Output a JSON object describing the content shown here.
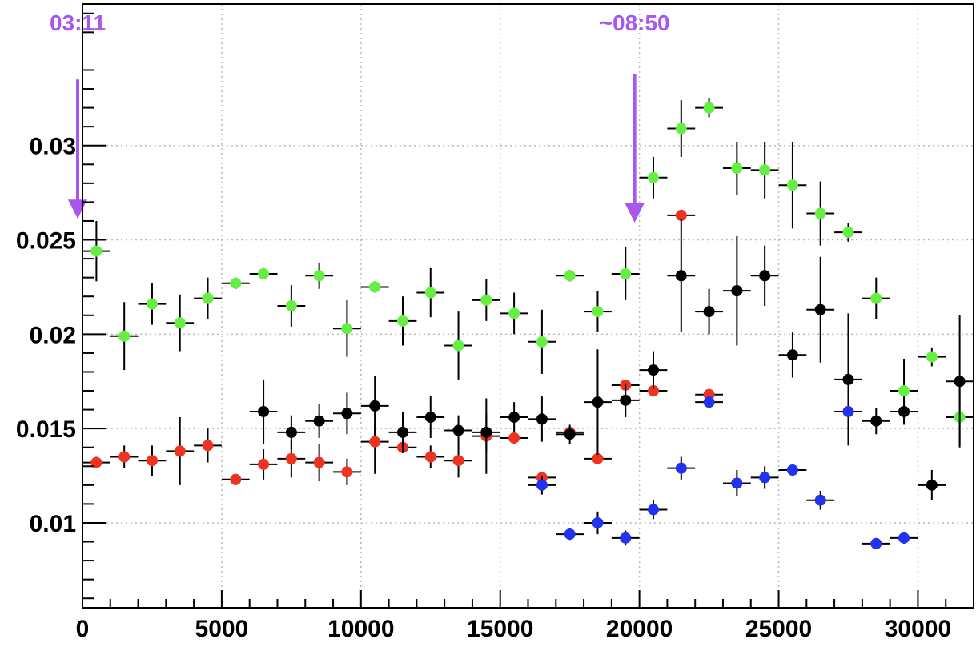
{
  "chart_data": {
    "type": "scatter",
    "title": "",
    "xlabel": "",
    "ylabel": "",
    "xlim": [
      0,
      32000
    ],
    "ylim": [
      0.0055,
      0.0375
    ],
    "grid": true,
    "bin_width": 1000,
    "xticks": [
      0,
      5000,
      10000,
      15000,
      20000,
      25000,
      30000
    ],
    "xtick_labels": [
      "0",
      "5000",
      "10000",
      "15000",
      "20000",
      "25000",
      "30000"
    ],
    "yticks": [
      0.01,
      0.015,
      0.02,
      0.025,
      0.03
    ],
    "ytick_labels": [
      "0.01",
      "0.015",
      "0.02",
      "0.025",
      "0.03"
    ],
    "series": [
      {
        "color": "#66ee44",
        "points": [
          {
            "x": 500,
            "y": 0.0244,
            "err": 0.0016
          },
          {
            "x": 1500,
            "y": 0.0199,
            "err": 0.0018
          },
          {
            "x": 2500,
            "y": 0.0216,
            "err": 0.0011
          },
          {
            "x": 3500,
            "y": 0.0206,
            "err": 0.0015
          },
          {
            "x": 4500,
            "y": 0.0219,
            "err": 0.0011
          },
          {
            "x": 5500,
            "y": 0.0227,
            "err": 0.0003
          },
          {
            "x": 6500,
            "y": 0.0232,
            "err": 0.0003
          },
          {
            "x": 7500,
            "y": 0.0215,
            "err": 0.0011
          },
          {
            "x": 8500,
            "y": 0.0231,
            "err": 0.0007
          },
          {
            "x": 9500,
            "y": 0.0203,
            "err": 0.0015
          },
          {
            "x": 10500,
            "y": 0.0225,
            "err": 0.0003
          },
          {
            "x": 11500,
            "y": 0.0207,
            "err": 0.0013
          },
          {
            "x": 12500,
            "y": 0.0222,
            "err": 0.0013
          },
          {
            "x": 13500,
            "y": 0.0194,
            "err": 0.0018
          },
          {
            "x": 14500,
            "y": 0.0218,
            "err": 0.0011
          },
          {
            "x": 15500,
            "y": 0.0211,
            "err": 0.0011
          },
          {
            "x": 16500,
            "y": 0.0196,
            "err": 0.0017
          },
          {
            "x": 17500,
            "y": 0.0231,
            "err": 0.0003
          },
          {
            "x": 18500,
            "y": 0.0212,
            "err": 0.0011
          },
          {
            "x": 19500,
            "y": 0.0232,
            "err": 0.0014
          },
          {
            "x": 20500,
            "y": 0.0283,
            "err": 0.0011
          },
          {
            "x": 21500,
            "y": 0.0309,
            "err": 0.0015
          },
          {
            "x": 22500,
            "y": 0.032,
            "err": 0.0005
          },
          {
            "x": 23500,
            "y": 0.0288,
            "err": 0.0014
          },
          {
            "x": 24500,
            "y": 0.0287,
            "err": 0.0015
          },
          {
            "x": 25500,
            "y": 0.0279,
            "err": 0.0023
          },
          {
            "x": 26500,
            "y": 0.0264,
            "err": 0.0017
          },
          {
            "x": 27500,
            "y": 0.0254,
            "err": 0.0005
          },
          {
            "x": 28500,
            "y": 0.0219,
            "err": 0.0011
          },
          {
            "x": 29500,
            "y": 0.017,
            "err": 0.0017
          },
          {
            "x": 30500,
            "y": 0.0188,
            "err": 0.0005
          },
          {
            "x": 31500,
            "y": 0.0156,
            "err": 0.0015
          }
        ]
      },
      {
        "color": "#ee3322",
        "points": [
          {
            "x": 500,
            "y": 0.0132,
            "err": 0.0003
          },
          {
            "x": 1500,
            "y": 0.0135,
            "err": 0.0006
          },
          {
            "x": 2500,
            "y": 0.0133,
            "err": 0.0008
          },
          {
            "x": 3500,
            "y": 0.0138,
            "err": 0.0018
          },
          {
            "x": 4500,
            "y": 0.0141,
            "err": 0.0009
          },
          {
            "x": 5500,
            "y": 0.0123,
            "err": 0.0003
          },
          {
            "x": 6500,
            "y": 0.0131,
            "err": 0.0008
          },
          {
            "x": 7500,
            "y": 0.0134,
            "err": 0.001
          },
          {
            "x": 8500,
            "y": 0.0132,
            "err": 0.001
          },
          {
            "x": 9500,
            "y": 0.0127,
            "err": 0.0007
          },
          {
            "x": 10500,
            "y": 0.0143,
            "err": 0.0017
          },
          {
            "x": 11500,
            "y": 0.014,
            "err": 0.0003
          },
          {
            "x": 12500,
            "y": 0.0135,
            "err": 0.0006
          },
          {
            "x": 13500,
            "y": 0.0133,
            "err": 0.0009
          },
          {
            "x": 14500,
            "y": 0.0146,
            "err": 0.002
          },
          {
            "x": 15500,
            "y": 0.0145,
            "err": 0.0003
          },
          {
            "x": 16500,
            "y": 0.0124,
            "err": 0.0003
          },
          {
            "x": 17500,
            "y": 0.0148,
            "err": 0.0003
          },
          {
            "x": 18500,
            "y": 0.0134,
            "err": 0.0003
          },
          {
            "x": 19500,
            "y": 0.0173,
            "err": 0.0003
          },
          {
            "x": 20500,
            "y": 0.017,
            "err": 0.0003
          },
          {
            "x": 21500,
            "y": 0.0263,
            "err": 0.0003
          },
          {
            "x": 22500,
            "y": 0.0168,
            "err": 0.0003
          }
        ]
      },
      {
        "color": "#000000",
        "points": [
          {
            "x": 6500,
            "y": 0.0159,
            "err": 0.0017
          },
          {
            "x": 7500,
            "y": 0.0148,
            "err": 0.0009
          },
          {
            "x": 8500,
            "y": 0.0154,
            "err": 0.0009
          },
          {
            "x": 9500,
            "y": 0.0158,
            "err": 0.0011
          },
          {
            "x": 10500,
            "y": 0.0162,
            "err": 0.0016
          },
          {
            "x": 11500,
            "y": 0.0148,
            "err": 0.0011
          },
          {
            "x": 12500,
            "y": 0.0156,
            "err": 0.0011
          },
          {
            "x": 13500,
            "y": 0.0149,
            "err": 0.0008
          },
          {
            "x": 14500,
            "y": 0.0148,
            "err": 0.001
          },
          {
            "x": 15500,
            "y": 0.0156,
            "err": 0.0008
          },
          {
            "x": 16500,
            "y": 0.0155,
            "err": 0.0012
          },
          {
            "x": 17500,
            "y": 0.0147,
            "err": 0.0005
          },
          {
            "x": 18500,
            "y": 0.0164,
            "err": 0.0028
          },
          {
            "x": 19500,
            "y": 0.0165,
            "err": 0.0009
          },
          {
            "x": 20500,
            "y": 0.0181,
            "err": 0.001
          },
          {
            "x": 21500,
            "y": 0.0231,
            "err": 0.003
          },
          {
            "x": 22500,
            "y": 0.0212,
            "err": 0.0012
          },
          {
            "x": 23500,
            "y": 0.0223,
            "err": 0.0029
          },
          {
            "x": 24500,
            "y": 0.0231,
            "err": 0.0016
          },
          {
            "x": 25500,
            "y": 0.0189,
            "err": 0.0012
          },
          {
            "x": 26500,
            "y": 0.0213,
            "err": 0.0028
          },
          {
            "x": 27500,
            "y": 0.0176,
            "err": 0.0035
          },
          {
            "x": 28500,
            "y": 0.0154,
            "err": 0.0007
          },
          {
            "x": 29500,
            "y": 0.0159,
            "err": 0.0007
          },
          {
            "x": 30500,
            "y": 0.012,
            "err": 0.0008
          },
          {
            "x": 31500,
            "y": 0.0175,
            "err": 0.0035
          }
        ]
      },
      {
        "color": "#2233ee",
        "points": [
          {
            "x": 16500,
            "y": 0.012,
            "err": 0.0005
          },
          {
            "x": 17500,
            "y": 0.0094,
            "err": 0.0003
          },
          {
            "x": 18500,
            "y": 0.01,
            "err": 0.0006
          },
          {
            "x": 19500,
            "y": 0.0092,
            "err": 0.0004
          },
          {
            "x": 20500,
            "y": 0.0107,
            "err": 0.0005
          },
          {
            "x": 21500,
            "y": 0.0129,
            "err": 0.0006
          },
          {
            "x": 22500,
            "y": 0.0164,
            "err": 0.0003
          },
          {
            "x": 23500,
            "y": 0.0121,
            "err": 0.0007
          },
          {
            "x": 24500,
            "y": 0.0124,
            "err": 0.0006
          },
          {
            "x": 25500,
            "y": 0.0128,
            "err": 0.0003
          },
          {
            "x": 26500,
            "y": 0.0112,
            "err": 0.0005
          },
          {
            "x": 27500,
            "y": 0.0159,
            "err": 0.0003
          },
          {
            "x": 28500,
            "y": 0.0089,
            "err": 0.0003
          },
          {
            "x": 29500,
            "y": 0.0092,
            "err": 0.0003
          }
        ]
      }
    ],
    "annotations": [
      {
        "text": "03:11",
        "x": 0,
        "color": "#aa55ee",
        "arrow_from_y": 0.0335,
        "arrow_to_y": 0.0262
      },
      {
        "text": "~08:50",
        "x": 20000,
        "color": "#aa55ee",
        "arrow_from_y": 0.0338,
        "arrow_to_y": 0.026
      }
    ]
  }
}
